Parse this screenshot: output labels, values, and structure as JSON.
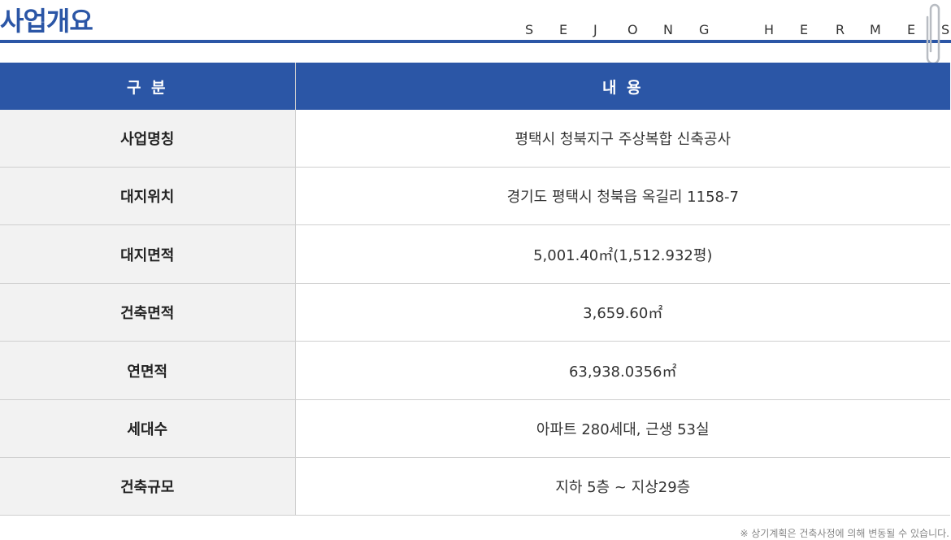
{
  "header": {
    "title": "사업개요",
    "brand_letters": [
      "S",
      "E",
      "J",
      "O",
      "N",
      "G",
      "H",
      "E",
      "R",
      "M",
      "E",
      "S"
    ]
  },
  "table": {
    "columns": [
      "구 분",
      "내 용"
    ],
    "rows": [
      {
        "label": "사업명칭",
        "value": "평택시 청북지구 주상복합 신축공사"
      },
      {
        "label": "대지위치",
        "value": "경기도 평택시 청북읍 옥길리 1158-7"
      },
      {
        "label": "대지면적",
        "value": "5,001.40㎡(1,512.932평)"
      },
      {
        "label": "건축면적",
        "value": "3,659.60㎡"
      },
      {
        "label": "연면적",
        "value": "63,938.0356㎡"
      },
      {
        "label": "세대수",
        "value": "아파트 280세대, 근생 53실"
      },
      {
        "label": "건축규모",
        "value": "지하 5층 ~ 지상29층"
      }
    ]
  },
  "footnote": "※ 상기계획은 건축사정에 의해 변동될 수 있습니다.",
  "colors": {
    "accent": "#2b56a6",
    "label_bg": "#f2f2f2",
    "border": "#cfcfcf"
  },
  "icons": {
    "clip": "paper-clip-icon"
  }
}
